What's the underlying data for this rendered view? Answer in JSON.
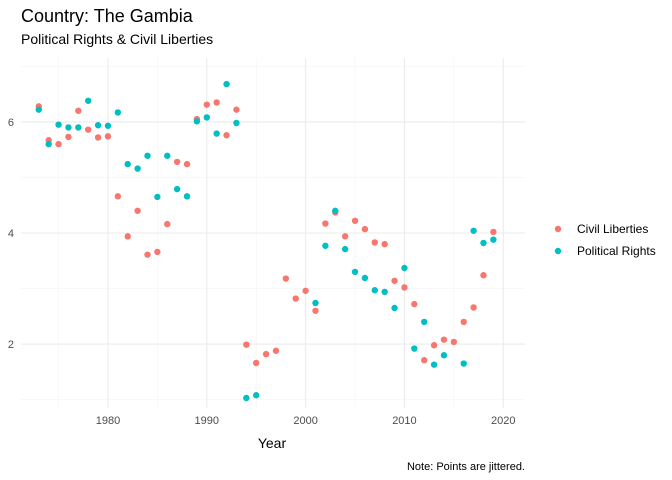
{
  "chart_data": {
    "type": "scatter",
    "title": "Country: The Gambia",
    "subtitle": "Political Rights & Civil Liberties",
    "xlabel": "Year",
    "ylabel": "",
    "caption": "Note: Points are jittered.",
    "xlim": [
      1971.2,
      2022.2
    ],
    "ylim": [
      0.85,
      7.15
    ],
    "xticks": [
      1980,
      1990,
      2000,
      2010,
      2020
    ],
    "yticks": [
      2,
      4,
      6
    ],
    "grid": true,
    "legend_position": "right",
    "series": [
      {
        "name": "Civil Liberties",
        "color": "#F8766D",
        "points": [
          [
            1973,
            6.28
          ],
          [
            1974,
            5.67
          ],
          [
            1975,
            5.6
          ],
          [
            1976,
            5.73
          ],
          [
            1977,
            6.2
          ],
          [
            1978,
            5.86
          ],
          [
            1979,
            5.72
          ],
          [
            1980,
            5.74
          ],
          [
            1981,
            4.66
          ],
          [
            1982,
            3.94
          ],
          [
            1983,
            4.4
          ],
          [
            1984,
            3.61
          ],
          [
            1985,
            3.66
          ],
          [
            1986,
            4.16
          ],
          [
            1987,
            5.28
          ],
          [
            1988,
            5.24
          ],
          [
            1989,
            6.05
          ],
          [
            1990,
            6.31
          ],
          [
            1991,
            6.35
          ],
          [
            1992,
            5.76
          ],
          [
            1993,
            6.22
          ],
          [
            1994,
            1.99
          ],
          [
            1995,
            1.66
          ],
          [
            1996,
            1.82
          ],
          [
            1997,
            1.88
          ],
          [
            1998,
            3.18
          ],
          [
            1999,
            2.82
          ],
          [
            2000,
            2.96
          ],
          [
            2001,
            2.6
          ],
          [
            2002,
            4.17
          ],
          [
            2003,
            4.37
          ],
          [
            2004,
            3.94
          ],
          [
            2005,
            4.22
          ],
          [
            2006,
            4.07
          ],
          [
            2007,
            3.83
          ],
          [
            2008,
            3.8
          ],
          [
            2009,
            3.14
          ],
          [
            2010,
            3.02
          ],
          [
            2011,
            2.72
          ],
          [
            2012,
            1.71
          ],
          [
            2013,
            1.98
          ],
          [
            2014,
            2.08
          ],
          [
            2015,
            2.04
          ],
          [
            2016,
            2.4
          ],
          [
            2017,
            2.66
          ],
          [
            2018,
            3.24
          ],
          [
            2019,
            4.02
          ]
        ]
      },
      {
        "name": "Political Rights",
        "color": "#00BFC4",
        "points": [
          [
            1973,
            6.22
          ],
          [
            1974,
            5.6
          ],
          [
            1975,
            5.95
          ],
          [
            1976,
            5.9
          ],
          [
            1977,
            5.9
          ],
          [
            1978,
            6.38
          ],
          [
            1979,
            5.94
          ],
          [
            1980,
            5.93
          ],
          [
            1981,
            6.17
          ],
          [
            1982,
            5.24
          ],
          [
            1983,
            5.16
          ],
          [
            1984,
            5.39
          ],
          [
            1985,
            4.65
          ],
          [
            1986,
            5.39
          ],
          [
            1987,
            4.79
          ],
          [
            1988,
            4.66
          ],
          [
            1989,
            6.01
          ],
          [
            1990,
            6.08
          ],
          [
            1991,
            5.79
          ],
          [
            1992,
            6.68
          ],
          [
            1993,
            5.98
          ],
          [
            1994,
            1.03
          ],
          [
            1995,
            1.08
          ],
          [
            2001,
            2.74
          ],
          [
            2002,
            3.77
          ],
          [
            2003,
            4.4
          ],
          [
            2004,
            3.71
          ],
          [
            2005,
            3.3
          ],
          [
            2006,
            3.19
          ],
          [
            2007,
            2.97
          ],
          [
            2008,
            2.94
          ],
          [
            2009,
            2.65
          ],
          [
            2010,
            3.37
          ],
          [
            2011,
            1.92
          ],
          [
            2012,
            2.4
          ],
          [
            2013,
            1.63
          ],
          [
            2014,
            1.8
          ],
          [
            2016,
            1.65
          ],
          [
            2017,
            4.04
          ],
          [
            2018,
            3.82
          ],
          [
            2019,
            3.88
          ]
        ]
      }
    ]
  }
}
